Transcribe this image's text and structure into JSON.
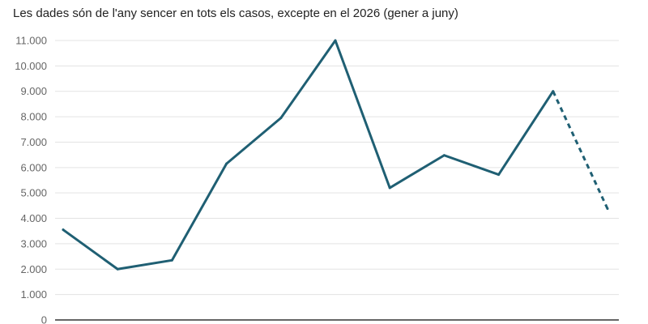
{
  "chart_data": {
    "type": "line",
    "subtitle": "Les dades són de l'any sencer en tots els casos, excepte en el 2026 (gener a juny)",
    "x": [
      "",
      "",
      "",
      "",
      "",
      "",
      "",
      "",
      "",
      "",
      ""
    ],
    "series": [
      {
        "values": [
          3550,
          2000,
          2350,
          6150,
          7950,
          11000,
          5200,
          6480,
          5720,
          9000,
          4380
        ],
        "color": "#1f5f73",
        "dashed_last_segment": true
      }
    ],
    "yticks": [
      "0",
      "1.000",
      "2.000",
      "3.000",
      "4.000",
      "5.000",
      "6.000",
      "7.000",
      "8.000",
      "9.000",
      "10.000",
      "11.000"
    ],
    "ylim": [
      0,
      11000
    ],
    "grid": true,
    "legend": "none"
  }
}
